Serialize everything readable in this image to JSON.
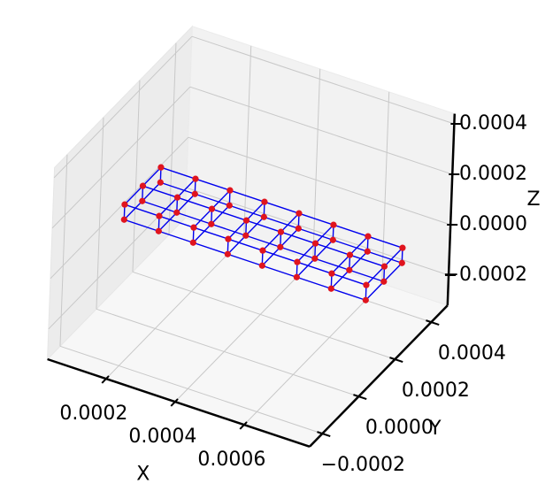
{
  "chart_data": {
    "type": "scatter3d",
    "xlabel": "X",
    "ylabel": "Y",
    "zlabel": "Z",
    "xlim": [
      3e-05,
      0.00079
    ],
    "ylim": [
      -0.00027,
      0.00049
    ],
    "zlim": [
      -0.00032,
      0.00044
    ],
    "xticks": [
      0.0002,
      0.0004,
      0.0006
    ],
    "yticks": [
      {
        "value": -0.0002,
        "label": "−0.0002"
      },
      {
        "value": 0,
        "label": "0.0000"
      },
      0.0002,
      0.0004
    ],
    "zticks": [
      {
        "value": -0.0002,
        "label": "−0.0002"
      },
      {
        "value": 0,
        "label": "0.0000"
      },
      0.0002,
      0.0004
    ],
    "grid": true,
    "series": [
      {
        "color": "#e0141e",
        "edge_color": "#0000ee",
        "x": [
          5e-05,
          0.00015,
          0.00025,
          0.00035,
          0.00045,
          0.00055,
          0.00065,
          0.00075,
          5e-05,
          0.00015,
          0.00025,
          0.00035,
          0.00045,
          0.00055,
          0.00065,
          0.00075,
          5e-05,
          0.00015,
          0.00025,
          0.00035,
          0.00045,
          0.00055,
          0.00065,
          0.00075,
          5e-05,
          0.00015,
          0.00025,
          0.00035,
          0.00045,
          0.00055,
          0.00065,
          0.00075,
          5e-05,
          0.00015,
          0.00025,
          0.00035,
          0.00045,
          0.00055,
          0.00065,
          0.00075,
          5e-05,
          0.00015,
          0.00025,
          0.00035,
          0.00045,
          0.00055,
          0.00065,
          0.00075
        ],
        "y": [
          0.0001,
          0.0001,
          0.0001,
          0.0001,
          0.0001,
          0.0001,
          0.0001,
          0.0001,
          0.0002,
          0.0002,
          0.0002,
          0.0002,
          0.0002,
          0.0002,
          0.0002,
          0.0002,
          0.0003,
          0.0003,
          0.0003,
          0.0003,
          0.0003,
          0.0003,
          0.0003,
          0.0003,
          0.0001,
          0.0001,
          0.0001,
          0.0001,
          0.0001,
          0.0001,
          0.0001,
          0.0001,
          0.0002,
          0.0002,
          0.0002,
          0.0002,
          0.0002,
          0.0002,
          0.0002,
          0.0002,
          0.0003,
          0.0003,
          0.0003,
          0.0003,
          0.0003,
          0.0003,
          0.0003,
          0.0003
        ],
        "z": [
          -3e-05,
          -3e-05,
          -3e-05,
          -3e-05,
          -3e-05,
          -3e-05,
          -3e-05,
          -3e-05,
          -3e-05,
          -3e-05,
          -3e-05,
          -3e-05,
          -3e-05,
          -3e-05,
          -3e-05,
          -3e-05,
          -3e-05,
          -3e-05,
          -3e-05,
          -3e-05,
          -3e-05,
          -3e-05,
          -3e-05,
          -3e-05,
          3e-05,
          3e-05,
          3e-05,
          3e-05,
          3e-05,
          3e-05,
          3e-05,
          3e-05,
          3e-05,
          3e-05,
          3e-05,
          3e-05,
          3e-05,
          3e-05,
          3e-05,
          3e-05,
          3e-05,
          3e-05,
          3e-05,
          3e-05,
          3e-05,
          3e-05,
          3e-05,
          3e-05
        ]
      }
    ]
  }
}
